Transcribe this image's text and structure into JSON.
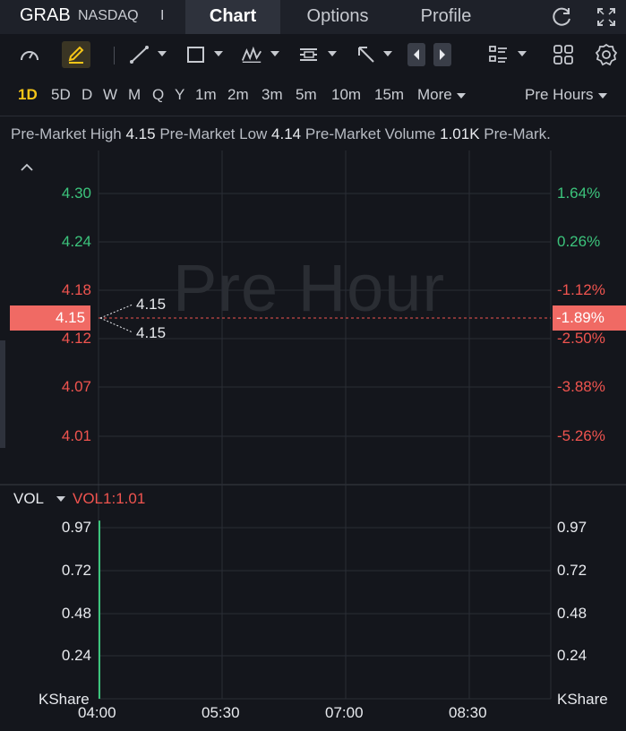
{
  "header": {
    "ticker": "GRAB",
    "exchange": "NASDAQ",
    "separator": "I",
    "tabs": [
      {
        "label": "Chart",
        "active": true
      },
      {
        "label": "Options",
        "active": false
      },
      {
        "label": "Profile",
        "active": false
      }
    ],
    "icons": [
      "refresh-icon",
      "fullscreen-icon"
    ]
  },
  "toolbar": {
    "icons": [
      "gauge-icon",
      "pencil-icon",
      "trend-line-icon",
      "rectangle-icon",
      "pattern-icon",
      "text-note-icon",
      "arrow-icon",
      "scroll-left-icon",
      "scroll-right-icon",
      "indicator-list-icon",
      "layout-grid-icon",
      "settings-icon"
    ]
  },
  "periods": {
    "items": [
      "1D",
      "5D",
      "D",
      "W",
      "M",
      "Q",
      "Y",
      "1m",
      "2m",
      "3m",
      "5m",
      "10m",
      "15m"
    ],
    "active": "1D",
    "more_label": "More",
    "session_label": "Pre Hours"
  },
  "info_bar": {
    "high_label": "Pre-Market High",
    "high_value": "4.15",
    "low_label": "Pre-Market Low",
    "low_value": "4.14",
    "volume_label": "Pre-Market Volume",
    "volume_value": "1.01K",
    "overflow_label": "Pre-Mark."
  },
  "chart": {
    "watermark": "Pre Hour",
    "current_price": "4.15",
    "current_change": "-1.89%",
    "marker_high": "4.15",
    "marker_low": "4.15",
    "volume_title": "VOL",
    "volume_indicator": "VOL1:1.01",
    "volume_unit_left": "KShare",
    "volume_unit_right": "KShare",
    "colors": {
      "up": "#3cc47c",
      "down": "#f0544f",
      "price_tag": "#f06a64"
    }
  },
  "chart_data": {
    "type": "line",
    "price_axis_left": [
      {
        "value": "4.30",
        "dir": "up"
      },
      {
        "value": "4.24",
        "dir": "up"
      },
      {
        "value": "4.18",
        "dir": "down"
      },
      {
        "value": "4.12",
        "dir": "down"
      },
      {
        "value": "4.07",
        "dir": "down"
      },
      {
        "value": "4.01",
        "dir": "down"
      }
    ],
    "price_axis_right": [
      {
        "value": "1.64%",
        "dir": "up"
      },
      {
        "value": "0.26%",
        "dir": "up"
      },
      {
        "value": "-1.12%",
        "dir": "down"
      },
      {
        "value": "-2.50%",
        "dir": "down"
      },
      {
        "value": "-3.88%",
        "dir": "down"
      },
      {
        "value": "-5.26%",
        "dir": "down"
      }
    ],
    "volume_axis": [
      "0.97",
      "0.72",
      "0.48",
      "0.24"
    ],
    "x_ticks": [
      "04:00",
      "05:30",
      "07:00",
      "08:30"
    ],
    "volume_bars": [
      {
        "x": "04:00",
        "value": 1.01
      }
    ]
  }
}
